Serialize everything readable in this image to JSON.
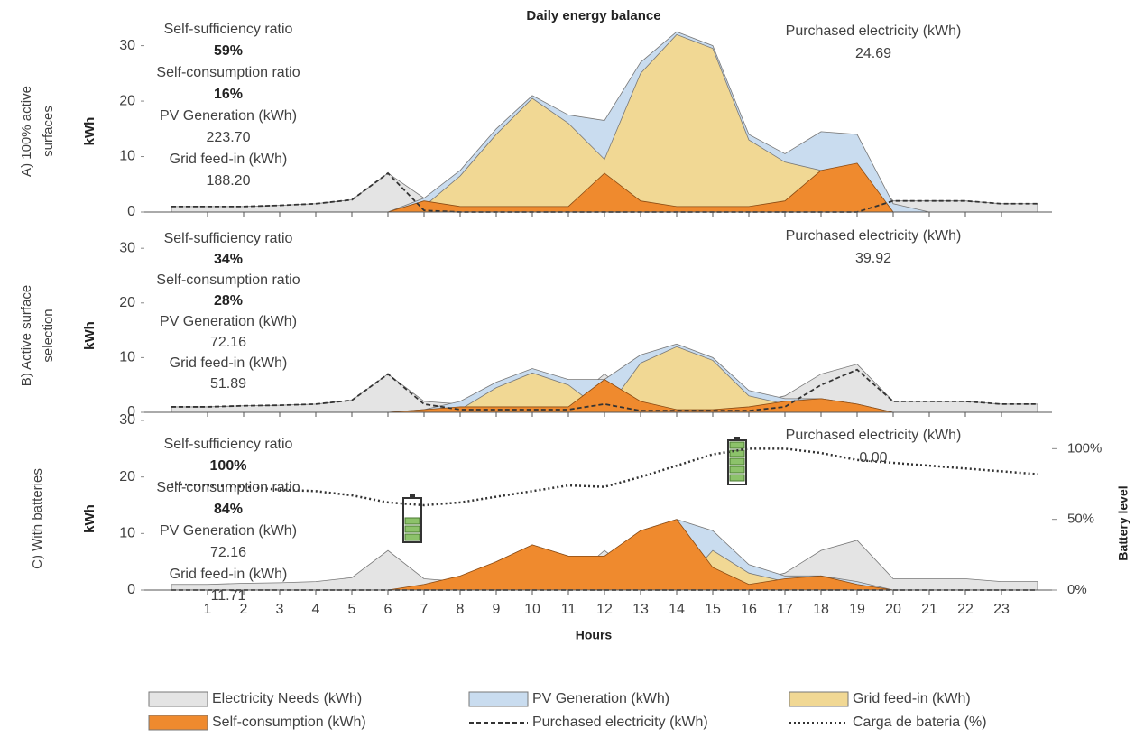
{
  "chart_data": [
    {
      "type": "area",
      "title": "Daily energy balance",
      "panel_label": [
        "A) 100% active",
        "surfaces"
      ],
      "ylabel": "kWh",
      "x": [
        0,
        1,
        2,
        3,
        4,
        5,
        6,
        7,
        8,
        9,
        10,
        11,
        12,
        13,
        14,
        15,
        16,
        17,
        18,
        19,
        20,
        21,
        22,
        23,
        24
      ],
      "xlim": [
        -0.75,
        24.4
      ],
      "xticks": [
        1,
        2,
        3,
        4,
        5,
        6,
        7,
        8,
        9,
        10,
        11,
        12,
        13,
        14,
        15,
        16,
        17,
        18,
        19,
        20,
        21,
        22,
        23
      ],
      "ylim": [
        0,
        34
      ],
      "yticks": [
        0,
        10,
        20,
        30
      ],
      "stats": [
        [
          "Self-sufficiency ratio",
          "59%"
        ],
        [
          "Self-consumption ratio",
          "16%"
        ],
        [
          "PV Generation (kWh)",
          "223.70"
        ],
        [
          "Grid feed-in (kWh)",
          "188.20"
        ]
      ],
      "purchased_total": [
        "Purchased electricity (kWh)",
        "24.69"
      ],
      "series": [
        {
          "name": "Electricity Needs (kWh)",
          "kind": "area",
          "color": "#e4e4e4",
          "values": [
            1,
            1,
            1,
            1.2,
            1.5,
            2.2,
            7,
            2.5,
            1.5,
            1.5,
            1.5,
            1.5,
            7,
            2,
            1.5,
            1.5,
            1.5,
            3,
            7.5,
            8.8,
            2,
            2,
            2,
            1.5,
            1.5
          ]
        },
        {
          "name": "PV Generation (kWh)",
          "kind": "area",
          "color": "#c9dcef",
          "values": [
            0,
            0,
            0,
            0,
            0,
            0,
            0,
            2.5,
            7.5,
            15,
            21,
            17.5,
            16.5,
            27,
            32.5,
            30,
            14,
            10.5,
            14.5,
            14,
            1.5,
            0,
            0,
            0,
            0
          ]
        },
        {
          "name": "Grid feed-in (kWh)",
          "kind": "area",
          "color": "#f1d894",
          "values": [
            0,
            0,
            0,
            0,
            0,
            0,
            0,
            1,
            6.5,
            14,
            20.5,
            16,
            9.5,
            25,
            32,
            29.5,
            13,
            9,
            7.5,
            0,
            0,
            0,
            0,
            0,
            0
          ]
        },
        {
          "name": "Self-consumption (kWh)",
          "kind": "area",
          "color": "#ef8a2e",
          "values": [
            0,
            0,
            0,
            0,
            0,
            0,
            0,
            2,
            1,
            1,
            1,
            1,
            7,
            2,
            1,
            1,
            1,
            2,
            7.5,
            8.8,
            0,
            0,
            0,
            0,
            0
          ]
        },
        {
          "name": "Purchased electricity (kWh)",
          "kind": "line",
          "style": "dashed",
          "color": "#333333",
          "values": [
            1,
            1,
            1,
            1.2,
            1.5,
            2.2,
            7,
            0.3,
            0,
            0,
            0,
            0,
            0,
            0,
            0,
            0,
            0,
            0,
            0,
            0,
            2,
            2,
            2,
            1.5,
            1.5
          ]
        }
      ]
    },
    {
      "type": "area",
      "panel_label": [
        "B) Active surface",
        "selection"
      ],
      "ylabel": "kWh",
      "x": [
        0,
        1,
        2,
        3,
        4,
        5,
        6,
        7,
        8,
        9,
        10,
        11,
        12,
        13,
        14,
        15,
        16,
        17,
        18,
        19,
        20,
        21,
        22,
        23,
        24
      ],
      "xlim": [
        -0.75,
        24.4
      ],
      "xticks": [
        1,
        2,
        3,
        4,
        5,
        6,
        7,
        8,
        9,
        10,
        11,
        12,
        13,
        14,
        15,
        16,
        17,
        18,
        19,
        20,
        21,
        22,
        23
      ],
      "ylim": [
        0,
        33
      ],
      "yticks": [
        0,
        10,
        20,
        30
      ],
      "stats": [
        [
          "Self-sufficiency ratio",
          "34%"
        ],
        [
          "Self-consumption ratio",
          "28%"
        ],
        [
          "PV Generation (kWh)",
          "72.16"
        ],
        [
          "Grid feed-in (kWh)",
          "51.89"
        ]
      ],
      "purchased_total": [
        "Purchased electricity (kWh)",
        "39.92"
      ],
      "series": [
        {
          "name": "Electricity Needs (kWh)",
          "kind": "area",
          "color": "#e4e4e4",
          "values": [
            1,
            1,
            1.2,
            1.3,
            1.5,
            2.2,
            7,
            2,
            1.5,
            1.5,
            1.5,
            1.5,
            7,
            2,
            1.5,
            1.5,
            1.5,
            3,
            7,
            8.8,
            2,
            2,
            2,
            1.5,
            1.5
          ]
        },
        {
          "name": "PV Generation (kWh)",
          "kind": "area",
          "color": "#c9dcef",
          "values": [
            0,
            0,
            0,
            0,
            0,
            0,
            0,
            0.5,
            2,
            5.5,
            8,
            6,
            6,
            10.5,
            12.5,
            10,
            4,
            2.5,
            2.5,
            1.5,
            0,
            0,
            0,
            0,
            0
          ]
        },
        {
          "name": "Grid feed-in (kWh)",
          "kind": "area",
          "color": "#f1d894",
          "values": [
            0,
            0,
            0,
            0,
            0,
            0,
            0,
            0,
            0.5,
            4.5,
            7.2,
            5,
            0,
            9,
            12,
            9.5,
            3,
            1.5,
            0,
            0,
            0,
            0,
            0,
            0,
            0
          ]
        },
        {
          "name": "Self-consumption (kWh)",
          "kind": "area",
          "color": "#ef8a2e",
          "values": [
            0,
            0,
            0,
            0,
            0,
            0,
            0,
            0.5,
            1,
            1,
            1,
            1,
            6,
            2,
            0.5,
            0.5,
            1,
            2,
            2.5,
            1.5,
            0,
            0,
            0,
            0,
            0
          ]
        },
        {
          "name": "Purchased electricity (kWh)",
          "kind": "line",
          "style": "dashed",
          "color": "#333333",
          "values": [
            1,
            1,
            1.2,
            1.3,
            1.5,
            2.2,
            7,
            1.5,
            0.5,
            0.5,
            0.5,
            0.5,
            1.5,
            0.3,
            0.3,
            0.3,
            0.3,
            1,
            5,
            7.8,
            2,
            2,
            2,
            1.5,
            1.5
          ]
        }
      ]
    },
    {
      "type": "area",
      "panel_label": [
        "C) With batteries"
      ],
      "ylabel": "kWh",
      "xlabel": "Hours",
      "y2label": "Battery level",
      "x": [
        0,
        1,
        2,
        3,
        4,
        5,
        6,
        7,
        8,
        9,
        10,
        11,
        12,
        13,
        14,
        15,
        16,
        17,
        18,
        19,
        20,
        21,
        22,
        23,
        24
      ],
      "xlim": [
        -0.75,
        24.4
      ],
      "xticks": [
        1,
        2,
        3,
        4,
        5,
        6,
        7,
        8,
        9,
        10,
        11,
        12,
        13,
        14,
        15,
        16,
        17,
        18,
        19,
        20,
        21,
        22,
        23
      ],
      "ylim": [
        0,
        30
      ],
      "yticks": [
        0,
        10,
        20,
        30
      ],
      "y2lim": [
        0,
        120
      ],
      "y2ticks": [
        {
          "value": 0,
          "label": "0%"
        },
        {
          "value": 50,
          "label": "50%"
        },
        {
          "value": 100,
          "label": "100%"
        }
      ],
      "stats": [
        [
          "Self-sufficiency ratio",
          "100%"
        ],
        [
          "Self-consumption ratio",
          "84%"
        ],
        [
          "PV Generation (kWh)",
          "72.16"
        ],
        [
          "Grid feed-in (kWh)",
          "11.71"
        ]
      ],
      "purchased_total": [
        "Purchased electricity (kWh)",
        "0.00"
      ],
      "series": [
        {
          "name": "Electricity Needs (kWh)",
          "kind": "area",
          "color": "#e4e4e4",
          "values": [
            1,
            1,
            1.2,
            1.3,
            1.5,
            2.2,
            7,
            2,
            1.5,
            1.5,
            1.5,
            1.5,
            7,
            2,
            1.5,
            1.5,
            1.5,
            3,
            7,
            8.8,
            2,
            2,
            2,
            1.5,
            1.5
          ]
        },
        {
          "name": "PV Generation (kWh)",
          "kind": "area",
          "color": "#c9dcef",
          "values": [
            0,
            0,
            0,
            0,
            0,
            0,
            0,
            0.5,
            2,
            5,
            8,
            6,
            6,
            10.5,
            12.5,
            10.5,
            4.5,
            2.5,
            2.5,
            1.5,
            0,
            0,
            0,
            0,
            0
          ]
        },
        {
          "name": "Grid feed-in (kWh)",
          "kind": "area",
          "color": "#f1d894",
          "values": [
            0,
            0,
            0,
            0,
            0,
            0,
            0,
            0,
            0,
            0,
            0,
            0,
            0,
            0,
            0,
            7,
            3,
            1.5,
            0,
            0,
            0,
            0,
            0,
            0,
            0
          ]
        },
        {
          "name": "Self-consumption (kWh)",
          "kind": "area",
          "color": "#ef8a2e",
          "values": [
            0,
            0,
            0,
            0,
            0,
            0,
            0,
            1,
            2.5,
            5,
            8,
            6,
            6,
            10.5,
            12.5,
            4,
            1,
            2,
            2.5,
            1,
            0,
            0,
            0,
            0,
            0
          ]
        },
        {
          "name": "Purchased electricity (kWh)",
          "kind": "line",
          "style": "dashed",
          "color": "#333333",
          "values": [
            0,
            0,
            0,
            0,
            0,
            0,
            0,
            0,
            0,
            0,
            0,
            0,
            0,
            0,
            0,
            0,
            0,
            0,
            0,
            0,
            0,
            0,
            0,
            0,
            0
          ]
        },
        {
          "name": "Carga de bateria (%)",
          "kind": "line",
          "style": "dotted",
          "axis": "y2",
          "color": "#333333",
          "values": [
            75,
            74,
            73,
            71,
            70,
            67,
            62,
            60,
            62,
            66,
            70,
            74,
            73,
            80,
            88,
            96,
            100,
            100,
            97,
            92,
            90,
            88,
            86,
            84,
            82
          ]
        }
      ]
    }
  ]
}
